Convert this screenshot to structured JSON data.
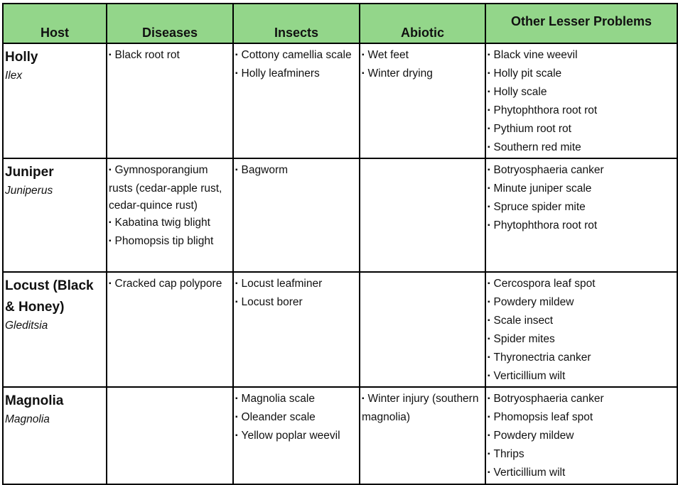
{
  "headers": {
    "host": "Host",
    "diseases": "Diseases",
    "insects": "Insects",
    "abiotic": "Abiotic",
    "other": "Other Lesser Problems"
  },
  "rows": [
    {
      "host_common": "Holly",
      "host_scientific": "Ilex",
      "diseases": [
        "Black root rot"
      ],
      "insects": [
        "Cottony camellia scale",
        "Holly leafminers"
      ],
      "abiotic": [
        "Wet feet",
        "Winter drying"
      ],
      "other": [
        "Black vine weevil",
        "Holly pit scale",
        "Holly scale",
        "Phytophthora root rot",
        "Pythium root rot",
        "Southern red mite"
      ]
    },
    {
      "host_common": "Juniper",
      "host_scientific": "Juniperus",
      "diseases": [
        "Gymnosporangium rusts (cedar-apple rust, cedar-quince rust)",
        "Kabatina twig blight",
        "Phomopsis tip blight"
      ],
      "insects": [
        "Bagworm"
      ],
      "abiotic": [],
      "other": [
        "Botryosphaeria canker",
        "Minute juniper scale",
        "Spruce spider mite",
        "Phytophthora root rot"
      ]
    },
    {
      "host_common": "Locust (Black & Honey)",
      "host_scientific": "Gleditsia",
      "diseases": [
        "Cracked cap polypore"
      ],
      "insects": [
        "Locust leafminer",
        "Locust borer"
      ],
      "abiotic": [],
      "other": [
        "Cercospora leaf spot",
        "Powdery mildew",
        "Scale insect",
        "Spider mites",
        "Thyronectria canker",
        "Verticillium wilt"
      ]
    },
    {
      "host_common": "Magnolia",
      "host_scientific": "Magnolia",
      "diseases": [],
      "insects": [
        "Magnolia scale",
        "Oleander scale",
        "Yellow poplar weevil"
      ],
      "abiotic": [
        "Winter injury (southern magnolia)"
      ],
      "other": [
        "Botryosphaeria canker",
        "Phomopsis leaf spot",
        "Powdery mildew",
        "Thrips",
        "Verticillium wilt"
      ]
    }
  ],
  "colors": {
    "header_bg": "#93d68a",
    "border": "#000000"
  }
}
